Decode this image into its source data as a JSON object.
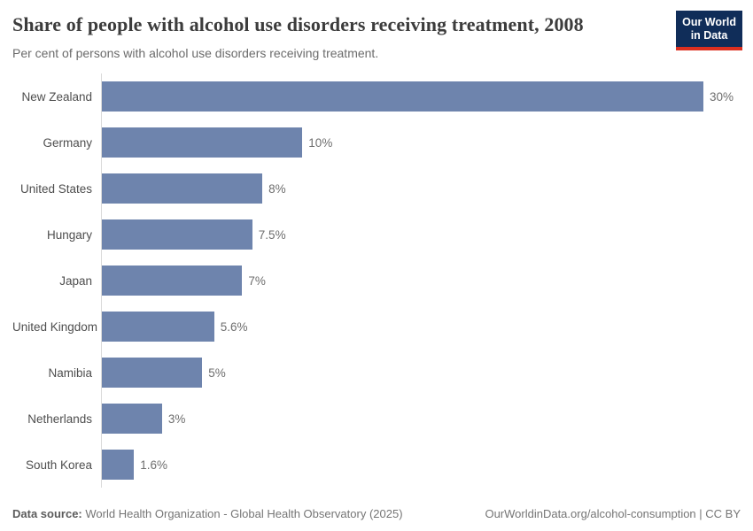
{
  "header": {
    "logo": {
      "line1": "Our World",
      "line2": "in Data",
      "bg_color": "#102d59",
      "accent_color": "#dc2f1f"
    }
  },
  "chart_data": {
    "type": "bar",
    "orientation": "horizontal",
    "title": "Share of people with alcohol use disorders receiving treatment, 2008",
    "subtitle": "Per cent of persons with alcohol use disorders receiving treatment.",
    "categories": [
      "New Zealand",
      "Germany",
      "United States",
      "Hungary",
      "Japan",
      "United Kingdom",
      "Namibia",
      "Netherlands",
      "South Korea"
    ],
    "values": [
      30,
      10,
      8,
      7.5,
      7,
      5.6,
      5,
      3,
      1.6
    ],
    "value_labels": [
      "30%",
      "10%",
      "8%",
      "7.5%",
      "7%",
      "5.6%",
      "5%",
      "3%",
      "1.6%"
    ],
    "unit": "%",
    "xlim": [
      0,
      30
    ],
    "bar_color": "#6e84ad",
    "axis_color": "#dadada",
    "grid": false,
    "legend": false
  },
  "footer": {
    "source_label": "Data source:",
    "source_text": "World Health Organization - Global Health Observatory (2025)",
    "link_text": "OurWorldinData.org/alcohol-consumption | CC BY"
  }
}
